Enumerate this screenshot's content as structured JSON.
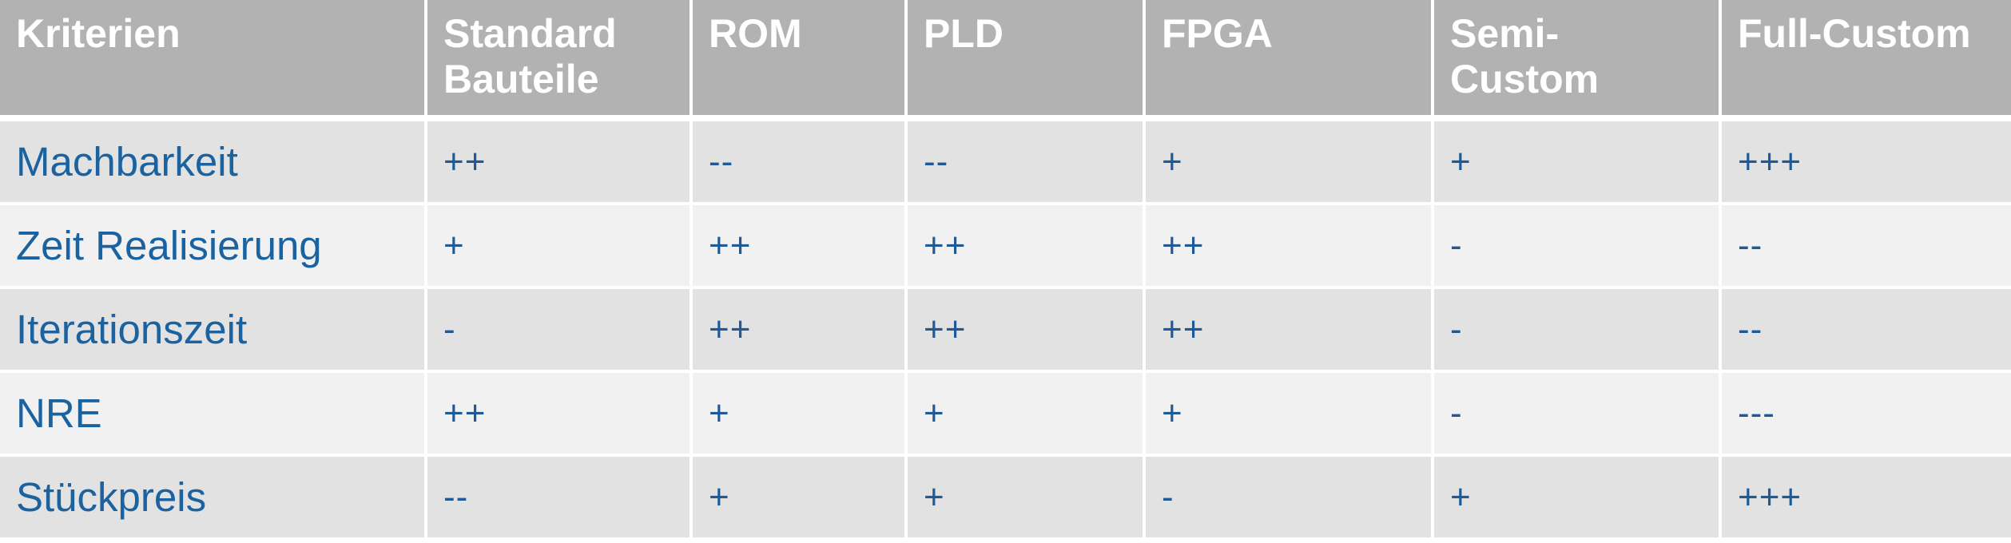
{
  "header": {
    "criteria": "Kriterien",
    "columns": [
      {
        "line1": "Standard",
        "line2": "Bauteile"
      },
      {
        "line1": "ROM",
        "line2": ""
      },
      {
        "line1": "PLD",
        "line2": ""
      },
      {
        "line1": "FPGA",
        "line2": ""
      },
      {
        "line1": "Semi-",
        "line2": "Custom"
      },
      {
        "line1": "Full-Custom",
        "line2": ""
      }
    ]
  },
  "rows": [
    {
      "label": "Machbarkeit",
      "values": [
        "++",
        "--",
        "--",
        "+",
        "+",
        "+++"
      ]
    },
    {
      "label": "Zeit Realisierung",
      "values": [
        "+",
        "++",
        "++",
        "++",
        "-",
        "--"
      ]
    },
    {
      "label": "Iterationszeit",
      "values": [
        "-",
        "++",
        "++",
        "++",
        "-",
        "--"
      ]
    },
    {
      "label": "NRE",
      "values": [
        "++",
        "+",
        "+",
        "+",
        "-",
        "---"
      ]
    },
    {
      "label": "Stückpreis",
      "values": [
        "--",
        "+",
        "+",
        "-",
        "+",
        "+++"
      ]
    }
  ],
  "colors": {
    "header_bg": "#b2b2b2",
    "header_text": "#ffffff",
    "row_odd_bg": "#e2e2e2",
    "row_even_bg": "#f1f1f1",
    "body_text": "#1f5a96"
  }
}
